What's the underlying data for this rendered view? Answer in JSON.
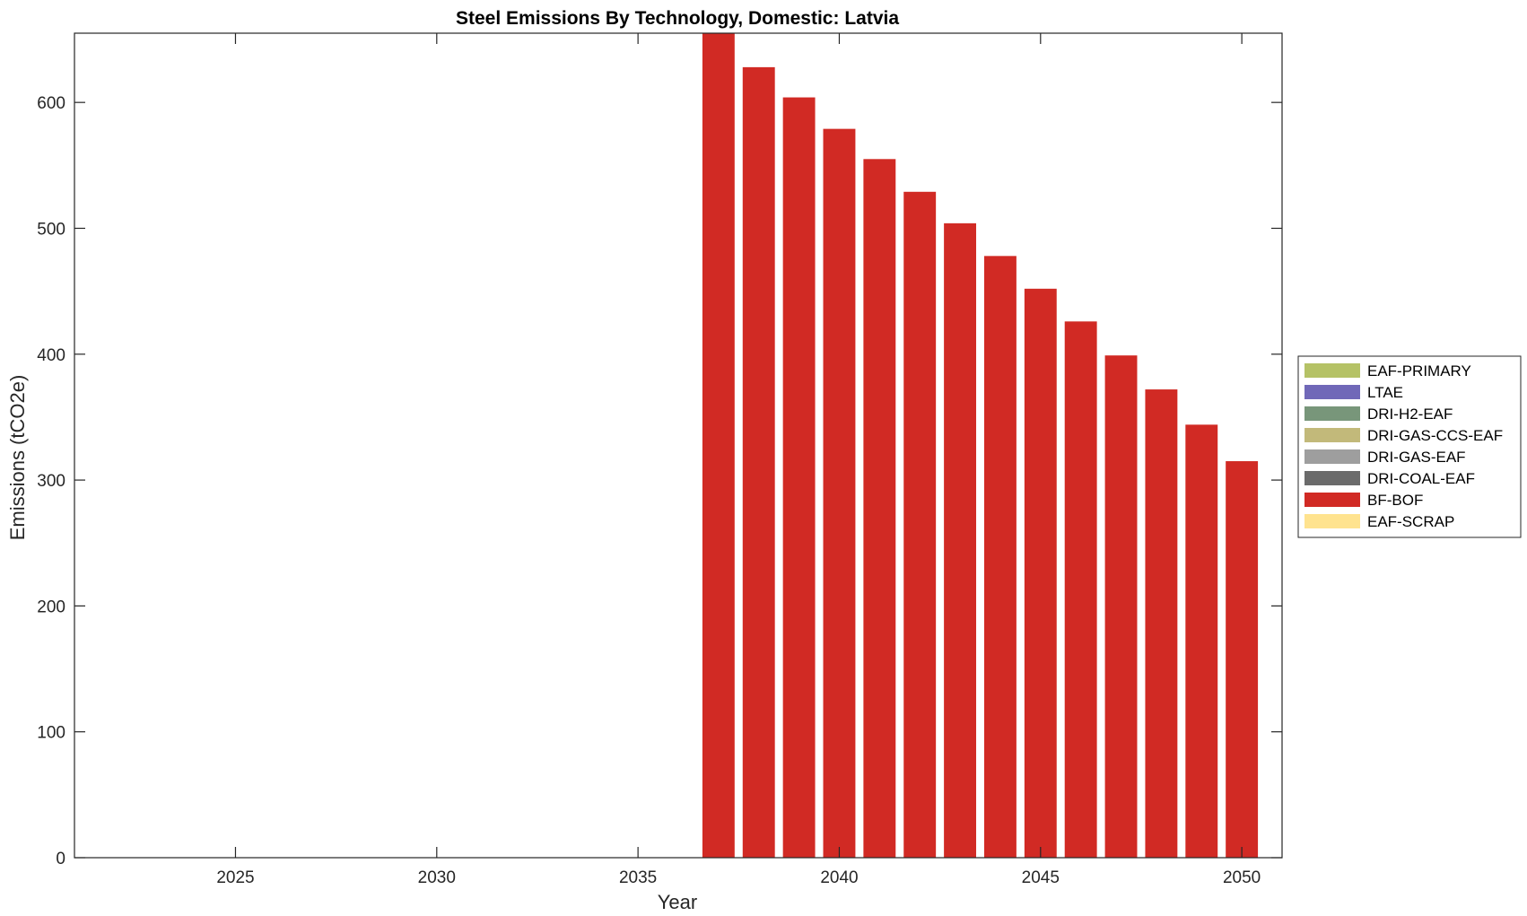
{
  "chart_data": {
    "type": "bar",
    "stacked": true,
    "title": "Steel Emissions By Technology, Domestic: Latvia",
    "xlabel": "Year",
    "ylabel": "Emissions (tCO2e)",
    "xlim": [
      2021,
      2051
    ],
    "ylim": [
      0,
      655
    ],
    "xticks": [
      2025,
      2030,
      2035,
      2040,
      2045,
      2050
    ],
    "yticks": [
      0,
      100,
      200,
      300,
      400,
      500,
      600
    ],
    "xtick_labels": [
      "2025",
      "2030",
      "2035",
      "2040",
      "2045",
      "2050"
    ],
    "ytick_labels": [
      "0",
      "100",
      "200",
      "300",
      "400",
      "500",
      "600"
    ],
    "x": [
      2022,
      2023,
      2024,
      2025,
      2026,
      2027,
      2028,
      2029,
      2030,
      2031,
      2032,
      2033,
      2034,
      2035,
      2036,
      2037,
      2038,
      2039,
      2040,
      2041,
      2042,
      2043,
      2044,
      2045,
      2046,
      2047,
      2048,
      2049,
      2050
    ],
    "series": [
      {
        "name": "EAF-PRIMARY",
        "color": "#b5c266",
        "values": [
          0,
          0,
          0,
          0,
          0,
          0,
          0,
          0,
          0,
          0,
          0,
          0,
          0,
          0,
          0,
          0,
          0,
          0,
          0,
          0,
          0,
          0,
          0,
          0,
          0,
          0,
          0,
          0,
          0
        ]
      },
      {
        "name": "LTAE",
        "color": "#7068b8",
        "values": [
          0,
          0,
          0,
          0,
          0,
          0,
          0,
          0,
          0,
          0,
          0,
          0,
          0,
          0,
          0,
          0,
          0,
          0,
          0,
          0,
          0,
          0,
          0,
          0,
          0,
          0,
          0,
          0,
          0
        ]
      },
      {
        "name": "DRI-H2-EAF",
        "color": "#78967a",
        "values": [
          0,
          0,
          0,
          0,
          0,
          0,
          0,
          0,
          0,
          0,
          0,
          0,
          0,
          0,
          0,
          0,
          0,
          0,
          0,
          0,
          0,
          0,
          0,
          0,
          0,
          0,
          0,
          0,
          0
        ]
      },
      {
        "name": "DRI-GAS-CCS-EAF",
        "color": "#c2b97a",
        "values": [
          0,
          0,
          0,
          0,
          0,
          0,
          0,
          0,
          0,
          0,
          0,
          0,
          0,
          0,
          0,
          0,
          0,
          0,
          0,
          0,
          0,
          0,
          0,
          0,
          0,
          0,
          0,
          0,
          0
        ]
      },
      {
        "name": "DRI-GAS-EAF",
        "color": "#9e9e9e",
        "values": [
          0,
          0,
          0,
          0,
          0,
          0,
          0,
          0,
          0,
          0,
          0,
          0,
          0,
          0,
          0,
          0,
          0,
          0,
          0,
          0,
          0,
          0,
          0,
          0,
          0,
          0,
          0,
          0,
          0
        ]
      },
      {
        "name": "DRI-COAL-EAF",
        "color": "#6b6b6b",
        "values": [
          0,
          0,
          0,
          0,
          0,
          0,
          0,
          0,
          0,
          0,
          0,
          0,
          0,
          0,
          0,
          0,
          0,
          0,
          0,
          0,
          0,
          0,
          0,
          0,
          0,
          0,
          0,
          0,
          0
        ]
      },
      {
        "name": "BF-BOF",
        "color": "#d12a24",
        "values": [
          0,
          0,
          0,
          0,
          0,
          0,
          0,
          0,
          0,
          0,
          0,
          0,
          0,
          0,
          0,
          655,
          628,
          604,
          579,
          555,
          529,
          504,
          478,
          452,
          426,
          399,
          372,
          344,
          315
        ]
      },
      {
        "name": "EAF-SCRAP",
        "color": "#ffe38f",
        "values": [
          0,
          0,
          0,
          0,
          0,
          0,
          0,
          0,
          0,
          0,
          0,
          0,
          0,
          0,
          0,
          0,
          0,
          0,
          0,
          0,
          0,
          0,
          0,
          0,
          0,
          0,
          0,
          0,
          0
        ]
      }
    ],
    "grid": false,
    "legend_position": "right"
  }
}
